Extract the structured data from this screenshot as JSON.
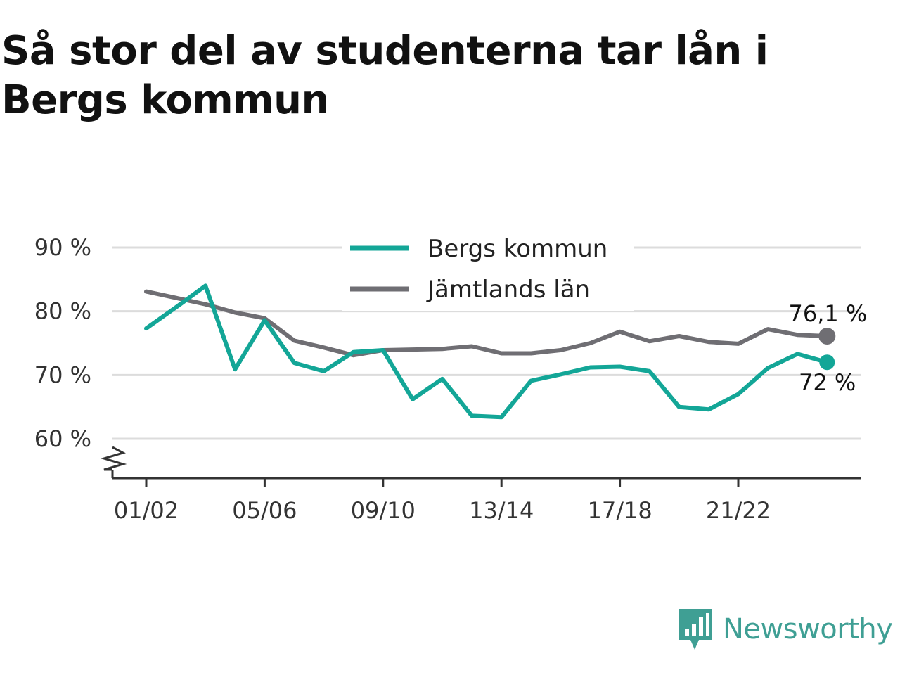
{
  "title": "Så stor del av studenterna tar lån i Bergs kommun",
  "brand": {
    "name": "Newsworthy",
    "icon": "newsworthy-logo-icon",
    "color": "#3f9f94"
  },
  "chart_data": {
    "type": "line",
    "title": "Så stor del av studenterna tar lån i Bergs kommun",
    "x": [
      "01/02",
      "02/03",
      "03/04",
      "04/05",
      "05/06",
      "06/07",
      "07/08",
      "08/09",
      "09/10",
      "10/11",
      "11/12",
      "12/13",
      "13/14",
      "14/15",
      "15/16",
      "16/17",
      "17/18",
      "18/19",
      "19/20",
      "20/21",
      "21/22",
      "22/23",
      "23/24",
      "24/25"
    ],
    "x_tick_labels": [
      "01/02",
      "05/06",
      "09/10",
      "13/14",
      "17/18",
      "21/22"
    ],
    "y_tick_values": [
      60,
      70,
      80,
      90
    ],
    "y_tick_labels": [
      "60 %",
      "70 %",
      "80 %",
      "90 %"
    ],
    "ylim": [
      54,
      92
    ],
    "y_axis_break": true,
    "grid": true,
    "legend_position": "top",
    "series": [
      {
        "name": "Bergs kommun",
        "color": "#13a697",
        "values": [
          77.3,
          80.6,
          84.0,
          70.9,
          78.6,
          71.9,
          70.6,
          73.6,
          73.9,
          66.2,
          69.4,
          63.6,
          63.4,
          69.1,
          70.1,
          71.2,
          71.3,
          70.6,
          65.0,
          64.6,
          67.0,
          71.1,
          73.3,
          72.0
        ],
        "end_label": "72 %"
      },
      {
        "name": "Jämtlands län",
        "color": "#6f6e73",
        "values": [
          83.1,
          82.1,
          81.1,
          79.8,
          78.9,
          75.4,
          74.3,
          73.1,
          73.9,
          74.0,
          74.1,
          74.5,
          73.4,
          73.4,
          73.9,
          75.0,
          76.8,
          75.3,
          76.1,
          75.2,
          74.9,
          77.2,
          76.3,
          76.1
        ],
        "end_label": "76,1 %"
      }
    ]
  }
}
